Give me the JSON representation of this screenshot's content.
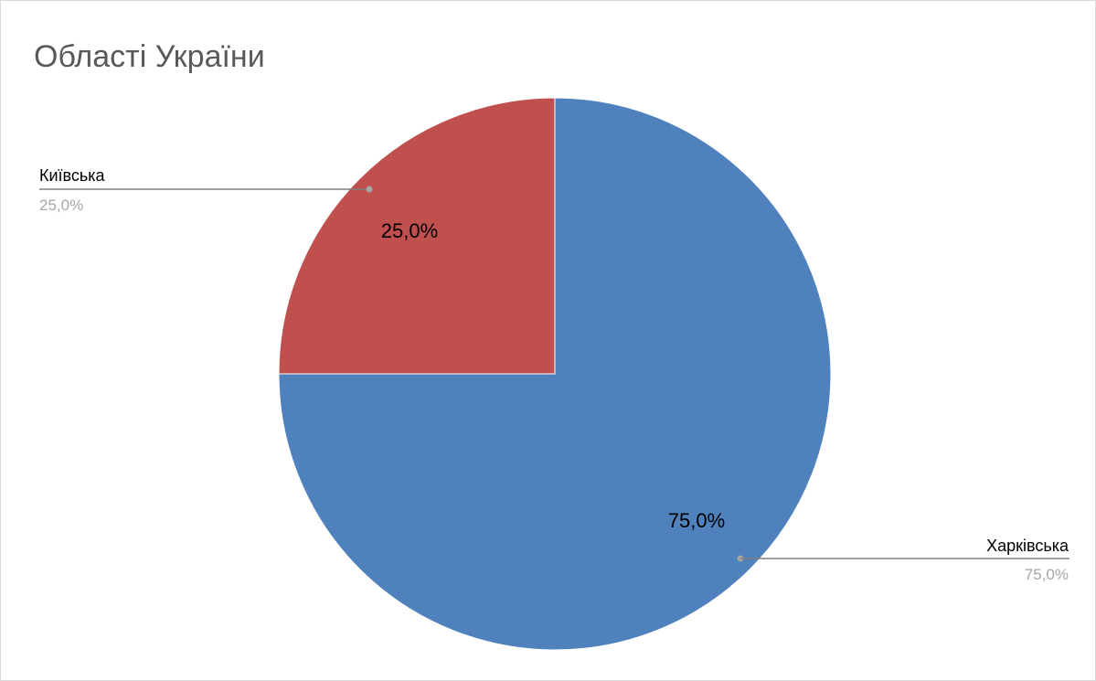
{
  "chart_data": {
    "type": "pie",
    "title": "Області України",
    "categories": [
      "Київська",
      "Харківська"
    ],
    "values": [
      25,
      75
    ],
    "value_labels": [
      "25,0%",
      "75,0%"
    ],
    "colors": [
      "#c0504d",
      "#4f81bd"
    ],
    "start_angle_deg": 0,
    "direction": "counterclockwise-from-top",
    "legend": "none",
    "data_labels": "inside-and-outside-callouts"
  }
}
